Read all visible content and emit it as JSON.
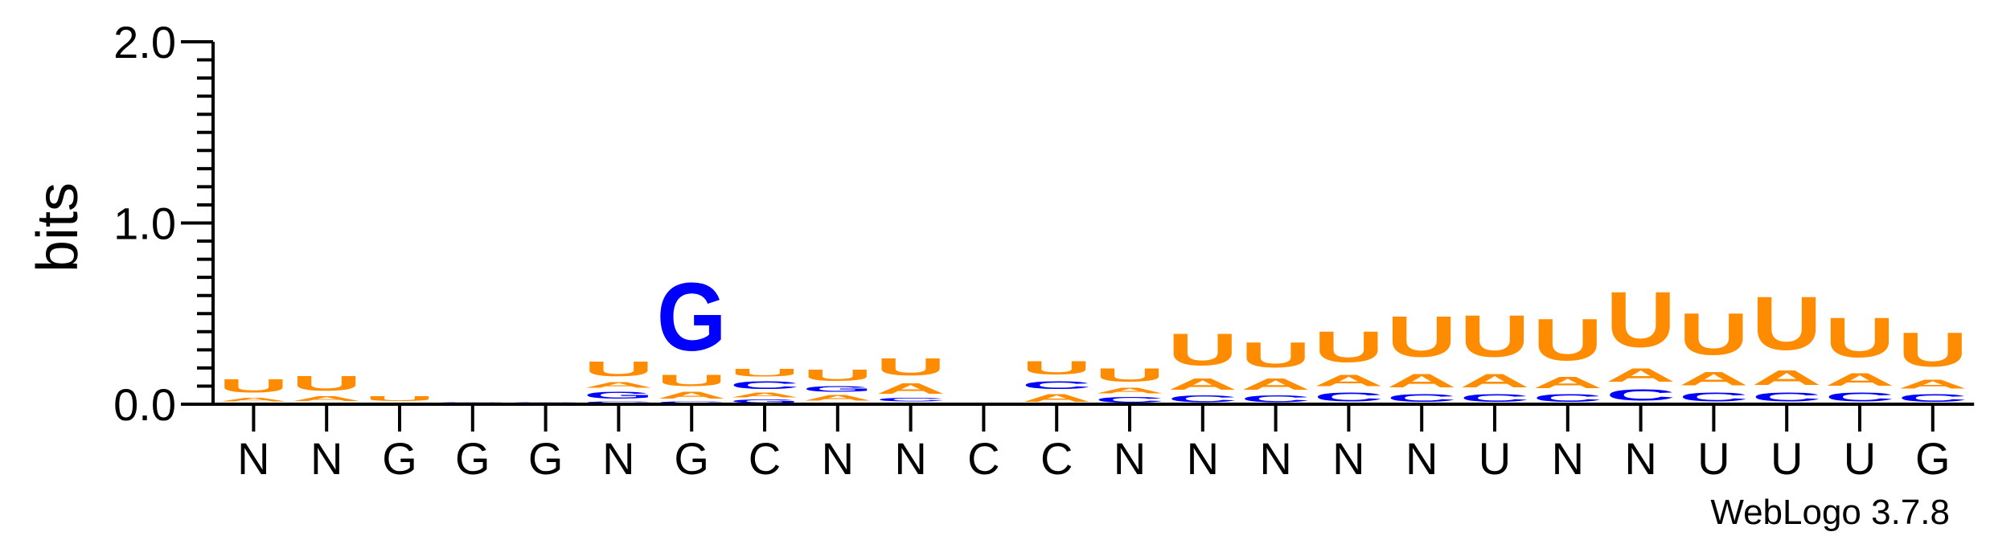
{
  "chart_data": {
    "type": "sequence-logo",
    "ylabel": "bits",
    "ylim": [
      0,
      2.0
    ],
    "yticks": [
      {
        "value": 0.0,
        "label": "0.0"
      },
      {
        "value": 1.0,
        "label": "1.0"
      },
      {
        "value": 2.0,
        "label": "2.0"
      }
    ],
    "colors": {
      "U": "#ff8c00",
      "A": "#ff8c00",
      "C": "#0000ff",
      "G": "#0000ff"
    },
    "positions": [
      {
        "label": "N",
        "stack": [
          {
            "letter": "C",
            "bits": 0.01
          },
          {
            "letter": "A",
            "bits": 0.03
          },
          {
            "letter": "U",
            "bits": 0.12
          }
        ]
      },
      {
        "label": "N",
        "stack": [
          {
            "letter": "C",
            "bits": 0.01
          },
          {
            "letter": "A",
            "bits": 0.04
          },
          {
            "letter": "U",
            "bits": 0.13
          }
        ]
      },
      {
        "label": "G",
        "stack": [
          {
            "letter": "C",
            "bits": 0.005
          },
          {
            "letter": "A",
            "bits": 0.005
          },
          {
            "letter": "U",
            "bits": 0.04
          }
        ]
      },
      {
        "label": "G",
        "stack": [
          {
            "letter": "U",
            "bits": 0.005
          },
          {
            "letter": "A",
            "bits": 0.005
          },
          {
            "letter": "G",
            "bits": 0.006
          }
        ]
      },
      {
        "label": "G",
        "stack": [
          {
            "letter": "U",
            "bits": 0.004
          },
          {
            "letter": "A",
            "bits": 0.004
          },
          {
            "letter": "G",
            "bits": 0.005
          }
        ]
      },
      {
        "label": "N",
        "stack": [
          {
            "letter": "C",
            "bits": 0.02
          },
          {
            "letter": "G",
            "bits": 0.06
          },
          {
            "letter": "A",
            "bits": 0.05
          },
          {
            "letter": "U",
            "bits": 0.13
          }
        ]
      },
      {
        "label": "G",
        "stack": [
          {
            "letter": "C",
            "bits": 0.02
          },
          {
            "letter": "A",
            "bits": 0.06
          },
          {
            "letter": "U",
            "bits": 0.1
          },
          {
            "letter": "G",
            "bits": 0.6
          }
        ]
      },
      {
        "label": "C",
        "stack": [
          {
            "letter": "G",
            "bits": 0.03
          },
          {
            "letter": "A",
            "bits": 0.04
          },
          {
            "letter": "C",
            "bits": 0.07
          },
          {
            "letter": "U",
            "bits": 0.07
          }
        ]
      },
      {
        "label": "N",
        "stack": [
          {
            "letter": "C",
            "bits": 0.01
          },
          {
            "letter": "A",
            "bits": 0.05
          },
          {
            "letter": "G",
            "bits": 0.05
          },
          {
            "letter": "U",
            "bits": 0.1
          }
        ]
      },
      {
        "label": "N",
        "stack": [
          {
            "letter": "G",
            "bits": 0.01
          },
          {
            "letter": "C",
            "bits": 0.03
          },
          {
            "letter": "A",
            "bits": 0.09
          },
          {
            "letter": "U",
            "bits": 0.15
          }
        ]
      },
      {
        "label": "C",
        "stack": []
      },
      {
        "label": "C",
        "stack": [
          {
            "letter": "A",
            "bits": 0.07
          },
          {
            "letter": "C",
            "bits": 0.07
          },
          {
            "letter": "U",
            "bits": 0.12
          }
        ]
      },
      {
        "label": "N",
        "stack": [
          {
            "letter": "C",
            "bits": 0.05
          },
          {
            "letter": "A",
            "bits": 0.05
          },
          {
            "letter": "U",
            "bits": 0.12
          }
        ]
      },
      {
        "label": "N",
        "stack": [
          {
            "letter": "C",
            "bits": 0.06
          },
          {
            "letter": "A",
            "bits": 0.1
          },
          {
            "letter": "U",
            "bits": 0.28
          }
        ]
      },
      {
        "label": "N",
        "stack": [
          {
            "letter": "C",
            "bits": 0.06
          },
          {
            "letter": "A",
            "bits": 0.1
          },
          {
            "letter": "U",
            "bits": 0.22
          }
        ]
      },
      {
        "label": "N",
        "stack": [
          {
            "letter": "C",
            "bits": 0.08
          },
          {
            "letter": "A",
            "bits": 0.1
          },
          {
            "letter": "U",
            "bits": 0.27
          }
        ]
      },
      {
        "label": "N",
        "stack": [
          {
            "letter": "C",
            "bits": 0.07
          },
          {
            "letter": "A",
            "bits": 0.12
          },
          {
            "letter": "U",
            "bits": 0.36
          }
        ]
      },
      {
        "label": "U",
        "stack": [
          {
            "letter": "C",
            "bits": 0.07
          },
          {
            "letter": "A",
            "bits": 0.12
          },
          {
            "letter": "U",
            "bits": 0.37
          }
        ]
      },
      {
        "label": "N",
        "stack": [
          {
            "letter": "C",
            "bits": 0.07
          },
          {
            "letter": "A",
            "bits": 0.1
          },
          {
            "letter": "U",
            "bits": 0.37
          }
        ]
      },
      {
        "label": "N",
        "stack": [
          {
            "letter": "C",
            "bits": 0.1
          },
          {
            "letter": "A",
            "bits": 0.12
          },
          {
            "letter": "U",
            "bits": 0.49
          }
        ]
      },
      {
        "label": "U",
        "stack": [
          {
            "letter": "C",
            "bits": 0.08
          },
          {
            "letter": "A",
            "bits": 0.12
          },
          {
            "letter": "U",
            "bits": 0.37
          }
        ]
      },
      {
        "label": "U",
        "stack": [
          {
            "letter": "C",
            "bits": 0.08
          },
          {
            "letter": "A",
            "bits": 0.13
          },
          {
            "letter": "U",
            "bits": 0.47
          }
        ]
      },
      {
        "label": "U",
        "stack": [
          {
            "letter": "C",
            "bits": 0.08
          },
          {
            "letter": "A",
            "bits": 0.11
          },
          {
            "letter": "U",
            "bits": 0.35
          }
        ]
      },
      {
        "label": "G",
        "stack": [
          {
            "letter": "C",
            "bits": 0.07
          },
          {
            "letter": "A",
            "bits": 0.08
          },
          {
            "letter": "U",
            "bits": 0.3
          }
        ]
      }
    ]
  },
  "credit": "WebLogo 3.7.8"
}
